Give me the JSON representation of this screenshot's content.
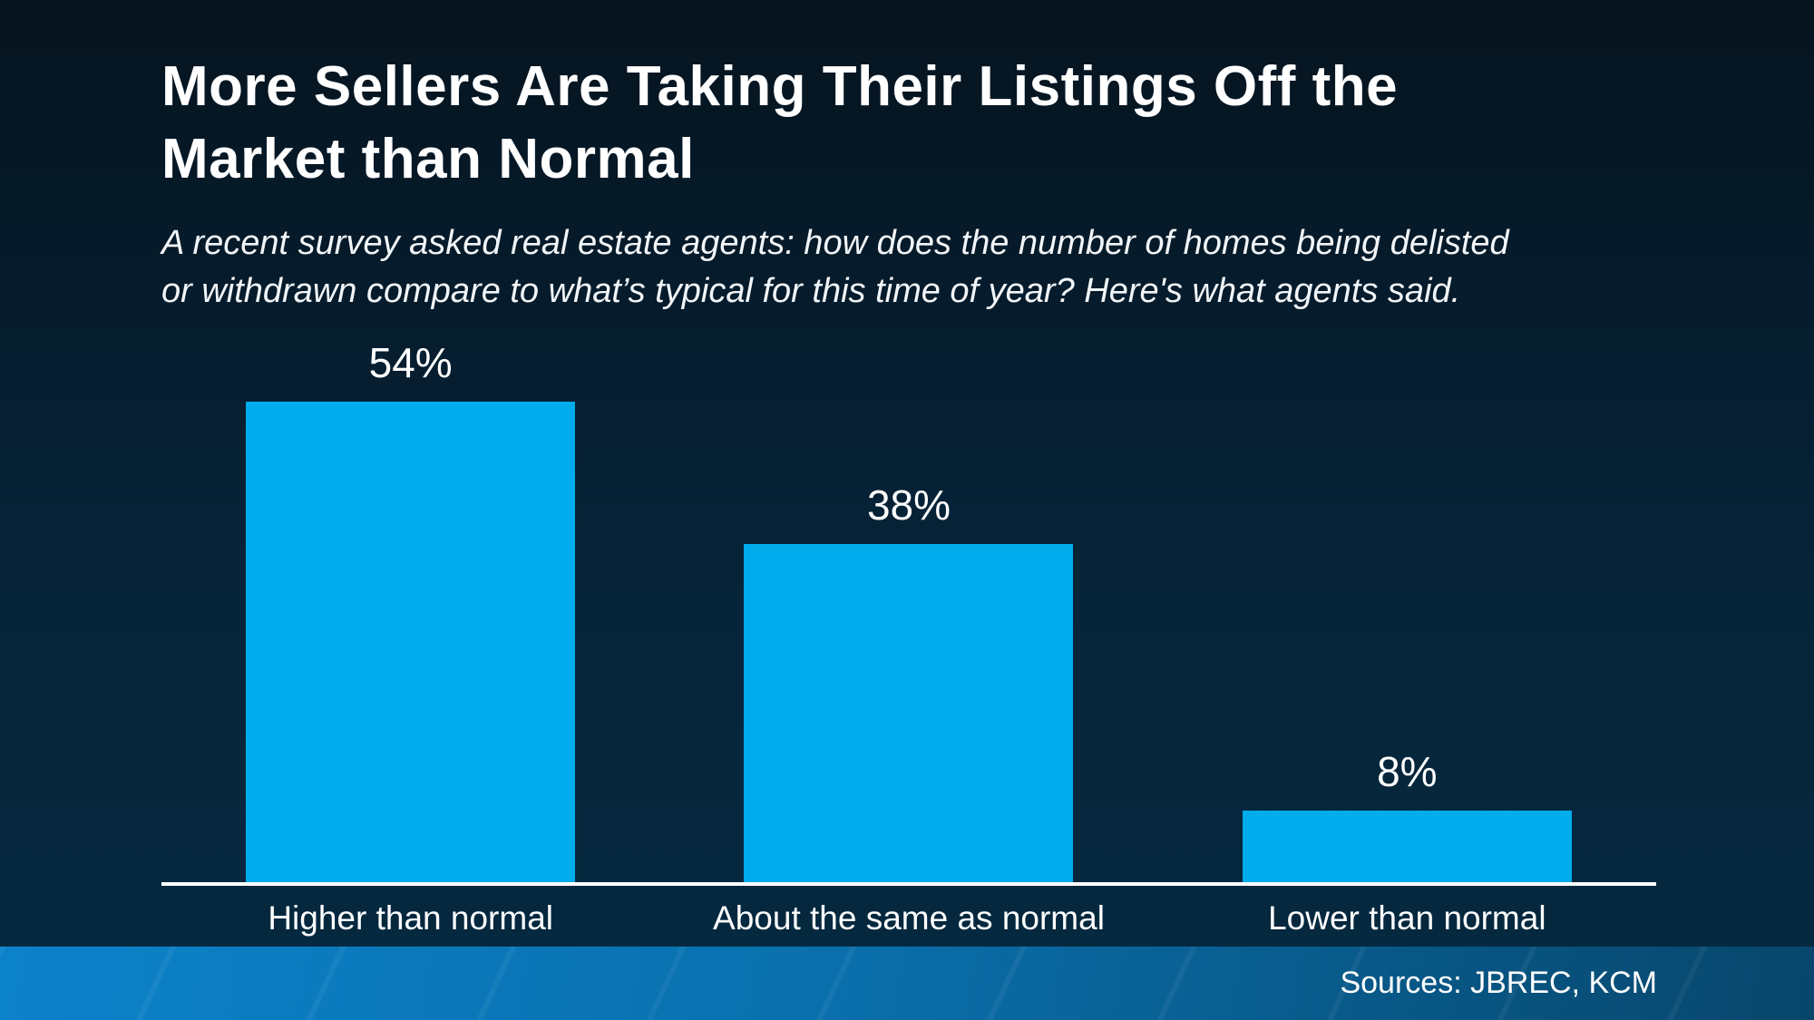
{
  "header": {
    "title_lines": [
      "More Sellers Are Taking Their Listings Off the",
      "Market than Normal"
    ],
    "subtitle_lines": [
      "A recent survey asked real estate agents: how does the number of homes being delisted",
      "or withdrawn compare to what’s typical for this time of year? Here's what agents said."
    ]
  },
  "chart_data": {
    "type": "bar",
    "title": "More Sellers Are Taking Their Listings Off the Market than Normal",
    "subtitle": "A recent survey asked real estate agents: how does the number of homes being delisted or withdrawn compare to what’s typical for this time of year? Here's what agents said.",
    "categories": [
      "Higher than normal",
      "About the same as normal",
      "Lower than normal"
    ],
    "values": [
      54,
      38,
      8
    ],
    "value_labels": [
      "54%",
      "38%",
      "8%"
    ],
    "unit": "percent",
    "ylim": [
      0,
      60
    ],
    "grid": false,
    "legend": "none",
    "data_labels_position": "above-bars",
    "bar_color": "#00acec",
    "axis_color": "#ffffff"
  },
  "footer": {
    "sources": "Sources: JBREC, KCM"
  },
  "colors": {
    "background_top": "#06141f",
    "background_bottom": "#052a41",
    "bar": "#00acec",
    "footer_left": "#0c82ca",
    "footer_right": "#07466b",
    "text": "#ffffff"
  }
}
